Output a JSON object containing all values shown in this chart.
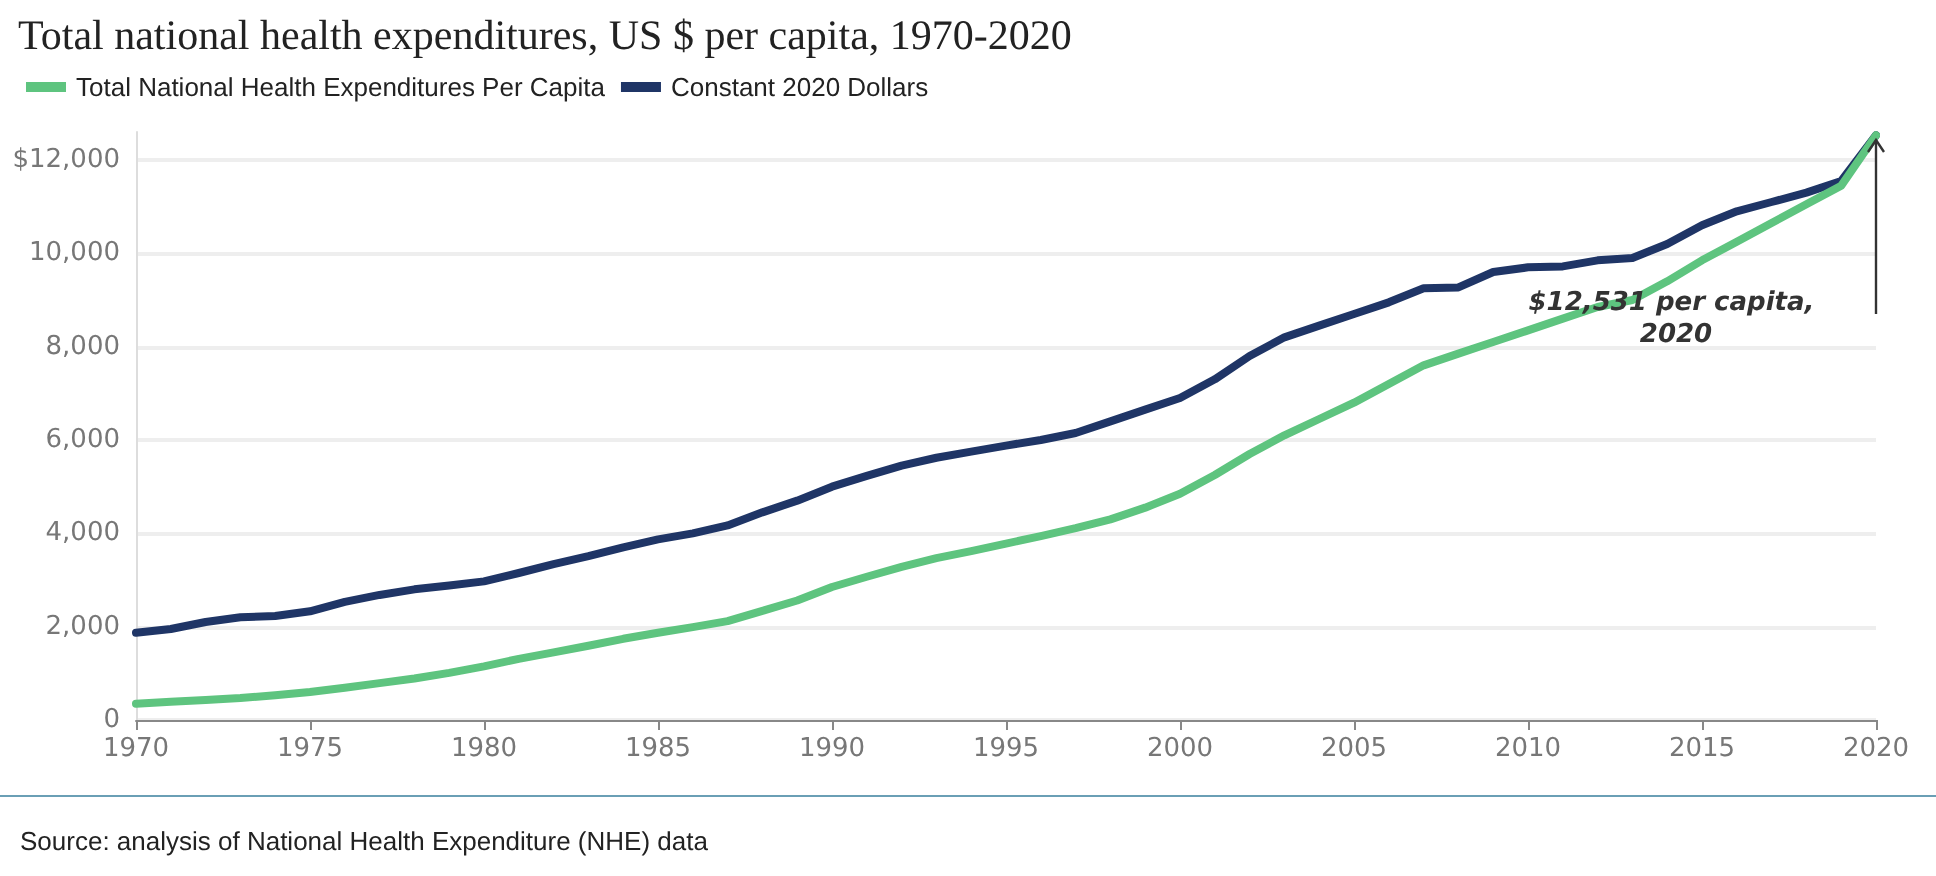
{
  "chart_data": {
    "type": "line",
    "title": "Total national health expenditures, US $ per capita, 1970-2020",
    "x": [
      1970,
      1971,
      1972,
      1973,
      1974,
      1975,
      1976,
      1977,
      1978,
      1979,
      1980,
      1981,
      1982,
      1983,
      1984,
      1985,
      1986,
      1987,
      1988,
      1989,
      1990,
      1991,
      1992,
      1993,
      1994,
      1995,
      1996,
      1997,
      1998,
      1999,
      2000,
      2001,
      2002,
      2003,
      2004,
      2005,
      2006,
      2007,
      2008,
      2009,
      2010,
      2011,
      2012,
      2013,
      2014,
      2015,
      2016,
      2017,
      2018,
      2019,
      2020
    ],
    "series": [
      {
        "name": "Total National Health Expenditures Per Capita",
        "color": "#5ec47f",
        "values": [
          350,
          390,
          430,
          470,
          530,
          600,
          690,
          790,
          890,
          1010,
          1150,
          1310,
          1450,
          1590,
          1740,
          1870,
          1990,
          2120,
          2340,
          2560,
          2850,
          3070,
          3280,
          3470,
          3620,
          3780,
          3940,
          4110,
          4300,
          4550,
          4850,
          5250,
          5700,
          6100,
          6450,
          6800,
          7200,
          7600,
          7850,
          8100,
          8350,
          8600,
          8850,
          9000,
          9400,
          9850,
          10250,
          10650,
          11050,
          11450,
          12531
        ]
      },
      {
        "name": "Constant 2020 Dollars",
        "color": "#1f3566",
        "values": [
          1870,
          1950,
          2100,
          2200,
          2230,
          2330,
          2530,
          2680,
          2800,
          2880,
          2970,
          3150,
          3340,
          3510,
          3700,
          3870,
          4000,
          4170,
          4450,
          4700,
          5000,
          5230,
          5450,
          5620,
          5750,
          5880,
          6000,
          6150,
          6400,
          6650,
          6900,
          7300,
          7800,
          8200,
          8450,
          8700,
          8950,
          9250,
          9270,
          9600,
          9700,
          9720,
          9850,
          9900,
          10200,
          10600,
          10900,
          11100,
          11300,
          11550,
          12531
        ]
      }
    ],
    "xlim": [
      1970,
      2020
    ],
    "xticks": [
      1970,
      1975,
      1980,
      1985,
      1990,
      1995,
      2000,
      2005,
      2010,
      2015,
      2020
    ],
    "ylim": [
      0,
      12600
    ],
    "yticks": [
      0,
      {
        "value": 2000,
        "label": "2,000"
      },
      {
        "value": 4000,
        "label": "4,000"
      },
      {
        "value": 6000,
        "label": "6,000"
      },
      {
        "value": 8000,
        "label": "8,000"
      },
      {
        "value": 10000,
        "label": "10,000"
      },
      {
        "value": 12000,
        "label": "$12,000"
      }
    ],
    "grid": "y",
    "legend": "top left",
    "marker": "none",
    "line_style": "solid",
    "annotations": [
      "$12,531 per capita, 2020",
      "Source: analysis of National Health Expenditure (NHE) data"
    ]
  }
}
